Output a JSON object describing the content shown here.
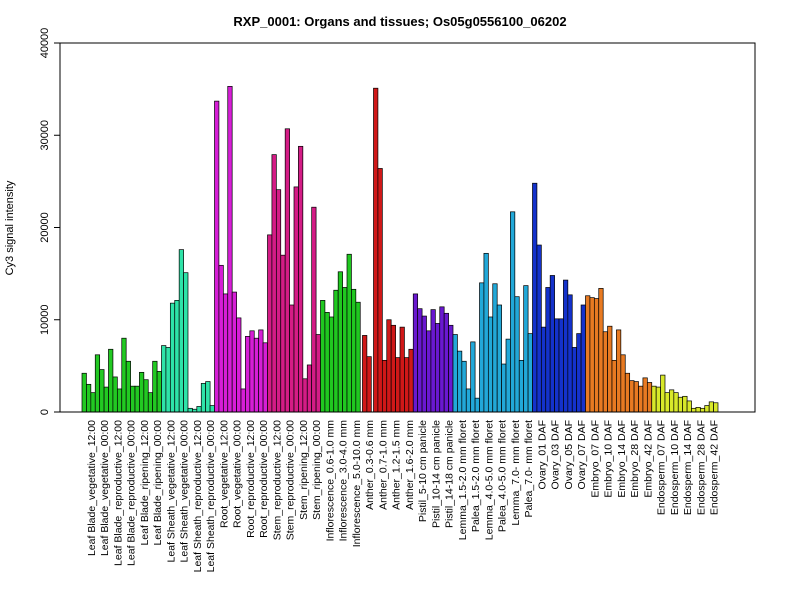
{
  "chart_data": {
    "type": "bar",
    "title": "RXP_0001: Organs and tissues; Os05g0556100_06202",
    "xlabel": "",
    "ylabel": "Cy3 signal intensity",
    "ylim": [
      0,
      40000
    ],
    "yticks": [
      0,
      10000,
      20000,
      30000,
      40000
    ],
    "grid": false,
    "legend": "none",
    "labels": [
      "Leaf Blade_vegetative_12:00",
      "Leaf Blade_vegetative_00:00",
      "Leaf Blade_reproductive_12:00",
      "Leaf Blade_reproductive_00:00",
      "Leaf Blade_ripening_12:00",
      "Leaf Blade_ripening_00:00",
      "Leaf Sheath_vegetative_12:00",
      "Leaf Sheath_vegetative_00:00",
      "Leaf Sheath_reproductive_12:00",
      "Leaf Sheath_reproductive_00:00",
      "Root_vegetative_12:00",
      "Root_vegetative_00:00",
      "Root_reproductive_12:00",
      "Root_reproductive_00:00",
      "Stem_reproductive_12:00",
      "Stem_reproductive_00:00",
      "Stem_ripening_12:00",
      "Stem_ripening_00:00",
      "Inflorescence_0.6-1.0 mm",
      "Inflorescence_3.0-4.0 mm",
      "Inflorescence_5.0-10.0 mm",
      "Anther_0.3-0.6 mm",
      "Anther_0.7-1.0 mm",
      "Anther_1.2-1.5 mm",
      "Anther_1.6-2.0 mm",
      "Pistil_5-10 cm panicle",
      "Pistil_10-14 cm panicle",
      "Pistil_14-18 cm panicle",
      "Lemma_1.5-2.0 mm floret",
      "Palea_1.5-2.0 mm floret",
      "Lemma_4.0-5.0 mm floret",
      "Palea_4.0-5.0 mm floret",
      "Lemma_7.0- mm floret",
      "Palea_7.0- mm floret",
      "Ovary_01 DAF",
      "Ovary_03 DAF",
      "Ovary_05 DAF",
      "Ovary_07 DAF",
      "Embryo_07 DAF",
      "Embryo_10 DAF",
      "Embryo_14 DAF",
      "Embryo_28 DAF",
      "Embryo_42 DAF",
      "Endosperm_07 DAF",
      "Endosperm_10 DAF",
      "Endosperm_14 DAF",
      "Endosperm_28 DAF",
      "Endosperm_42 DAF"
    ],
    "groups": [
      {
        "color": "#22c922",
        "values": [
          4200,
          3000,
          2100
        ]
      },
      {
        "color": "#22c922",
        "values": [
          6200,
          4600,
          2700
        ]
      },
      {
        "color": "#22c922",
        "values": [
          6800,
          3800,
          2500
        ]
      },
      {
        "color": "#22c922",
        "values": [
          8000,
          5500,
          2800
        ]
      },
      {
        "color": "#22c922",
        "values": [
          2800,
          4300,
          3500
        ]
      },
      {
        "color": "#22c922",
        "values": [
          2100,
          5500,
          4400
        ]
      },
      {
        "color": "#2ee3a8",
        "values": [
          7200,
          7000,
          11800
        ]
      },
      {
        "color": "#2ee3a8",
        "values": [
          12100,
          17600,
          15100
        ]
      },
      {
        "color": "#2ee3a8",
        "values": [
          400,
          300,
          600
        ]
      },
      {
        "color": "#2ee3a8",
        "values": [
          3100,
          3300,
          700
        ]
      },
      {
        "color": "#d61ed6",
        "values": [
          33700,
          15900,
          12800
        ]
      },
      {
        "color": "#d61ed6",
        "values": [
          35300,
          13000,
          10200
        ]
      },
      {
        "color": "#d61ed6",
        "values": [
          2500,
          8200,
          8800
        ]
      },
      {
        "color": "#d61ed6",
        "values": [
          8000,
          8900,
          7500
        ]
      },
      {
        "color": "#d41c86",
        "values": [
          19200,
          27900,
          24100
        ]
      },
      {
        "color": "#d41c86",
        "values": [
          17000,
          30700,
          11600
        ]
      },
      {
        "color": "#d41c86",
        "values": [
          24400,
          28800,
          3600
        ]
      },
      {
        "color": "#d41c86",
        "values": [
          5100,
          22200,
          8400
        ]
      },
      {
        "color": "#20c820",
        "values": [
          12100,
          10800,
          10300
        ]
      },
      {
        "color": "#20c820",
        "values": [
          13200,
          15200,
          13500
        ]
      },
      {
        "color": "#20c820",
        "values": [
          17100,
          13300,
          11900
        ]
      },
      {
        "color": "#d01818",
        "values": [
          8300,
          6000
        ]
      },
      {
        "color": "#d01818",
        "values": [
          35100,
          26400,
          5600
        ]
      },
      {
        "color": "#d01818",
        "values": [
          10000,
          9400,
          5900
        ]
      },
      {
        "color": "#d01818",
        "values": [
          9200,
          5900,
          6800
        ]
      },
      {
        "color": "#6a18d0",
        "values": [
          12800,
          11200,
          10400
        ]
      },
      {
        "color": "#6a18d0",
        "values": [
          8800,
          11100,
          9600
        ]
      },
      {
        "color": "#6a18d0",
        "values": [
          11400,
          10700,
          9400
        ]
      },
      {
        "color": "#22a8d8",
        "values": [
          8400,
          6600,
          5500
        ]
      },
      {
        "color": "#22a8d8",
        "values": [
          2500,
          7600,
          1500
        ]
      },
      {
        "color": "#22a8d8",
        "values": [
          14000,
          17200,
          10300
        ]
      },
      {
        "color": "#22a8d8",
        "values": [
          13900,
          11600,
          5200
        ]
      },
      {
        "color": "#22a8d8",
        "values": [
          7900,
          21700,
          12500
        ]
      },
      {
        "color": "#22a8d8",
        "values": [
          5600,
          13700,
          8500
        ]
      },
      {
        "color": "#1432cc",
        "values": [
          24800,
          18100,
          9200
        ]
      },
      {
        "color": "#1432cc",
        "values": [
          13500,
          14800,
          10100
        ]
      },
      {
        "color": "#1432cc",
        "values": [
          10100,
          14300,
          12700
        ]
      },
      {
        "color": "#1432cc",
        "values": [
          7000,
          8500,
          11600
        ]
      },
      {
        "color": "#e87a22",
        "values": [
          12600,
          12400,
          12300
        ]
      },
      {
        "color": "#e87a22",
        "values": [
          13400,
          8700,
          9300
        ]
      },
      {
        "color": "#e87a22",
        "values": [
          5600,
          8900,
          6200
        ]
      },
      {
        "color": "#e87a22",
        "values": [
          4200,
          3400,
          3300
        ]
      },
      {
        "color": "#e87a22",
        "values": [
          2800,
          3700,
          3200
        ]
      },
      {
        "color": "#d8e82a",
        "values": [
          2800,
          2700,
          4000
        ]
      },
      {
        "color": "#d8e82a",
        "values": [
          2100,
          2400,
          2100
        ]
      },
      {
        "color": "#d8e82a",
        "values": [
          1600,
          1700,
          1200
        ]
      },
      {
        "color": "#d8e82a",
        "values": [
          400,
          500,
          400
        ]
      },
      {
        "color": "#d8e82a",
        "values": [
          700,
          1100,
          1000
        ]
      }
    ]
  }
}
